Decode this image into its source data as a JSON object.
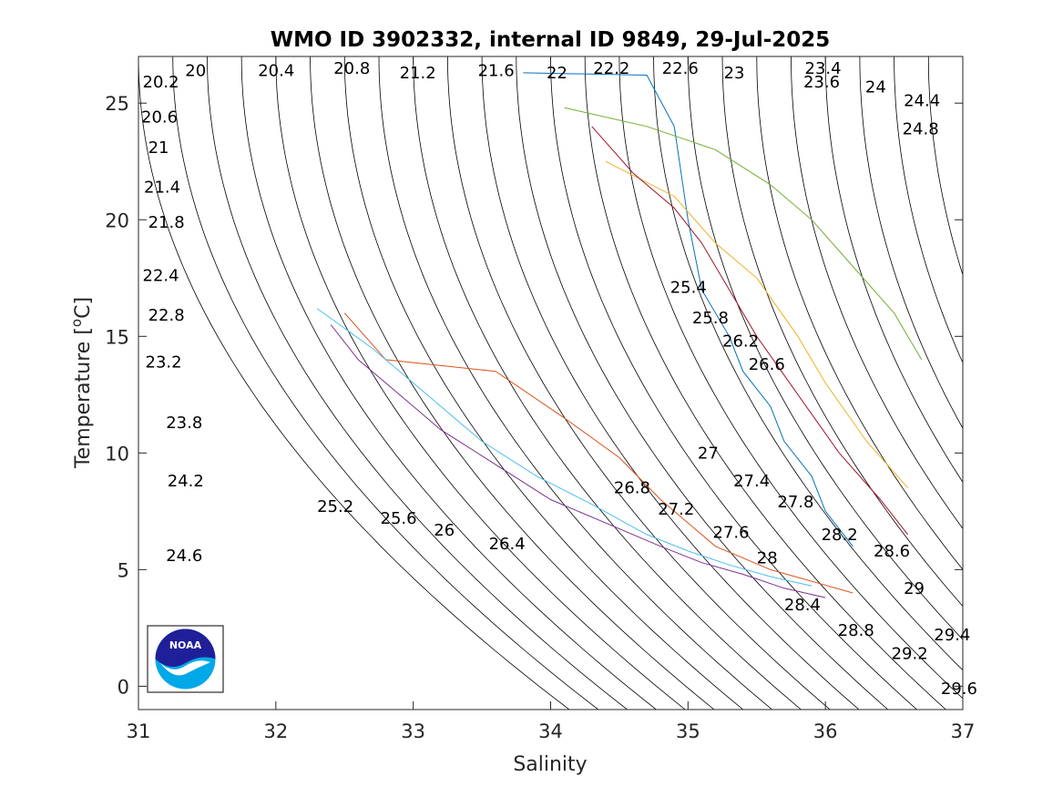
{
  "chart_data": {
    "type": "line",
    "title": "WMO ID 3902332, internal ID 9849, 29-Jul-2025",
    "xlabel": "Salinity",
    "ylabel": "Temperature [",
    "ylabel_unit": "o",
    "ylabel_tail": "C]",
    "xlim": [
      31,
      37
    ],
    "ylim": [
      -1,
      27
    ],
    "x_ticks": [
      "31",
      "32",
      "33",
      "34",
      "35",
      "36",
      "37"
    ],
    "y_ticks": [
      "0",
      "5",
      "10",
      "15",
      "20",
      "25"
    ],
    "grid": false,
    "density_contour_labels": [
      {
        "text": "20",
        "s": 31.34,
        "t": 26.4
      },
      {
        "text": "20.4",
        "s": 31.87,
        "t": 26.4
      },
      {
        "text": "20.8",
        "s": 32.42,
        "t": 26.5
      },
      {
        "text": "21.2",
        "s": 32.9,
        "t": 26.3
      },
      {
        "text": "21.6",
        "s": 33.47,
        "t": 26.4
      },
      {
        "text": "22",
        "s": 33.97,
        "t": 26.3
      },
      {
        "text": "22.2",
        "s": 34.31,
        "t": 26.5
      },
      {
        "text": "22.6",
        "s": 34.81,
        "t": 26.5
      },
      {
        "text": "23",
        "s": 35.26,
        "t": 26.3
      },
      {
        "text": "23.4",
        "s": 35.85,
        "t": 26.5
      },
      {
        "text": "23.6",
        "s": 35.84,
        "t": 25.9
      },
      {
        "text": "24",
        "s": 36.29,
        "t": 25.7
      },
      {
        "text": "24.4",
        "s": 36.57,
        "t": 25.1
      },
      {
        "text": "24.8",
        "s": 36.56,
        "t": 23.9
      },
      {
        "text": "20.2",
        "s": 31.03,
        "t": 25.9
      },
      {
        "text": "20.6",
        "s": 31.02,
        "t": 24.4
      },
      {
        "text": "21",
        "s": 31.07,
        "t": 23.1
      },
      {
        "text": "21.4",
        "s": 31.04,
        "t": 21.4
      },
      {
        "text": "21.8",
        "s": 31.07,
        "t": 19.9
      },
      {
        "text": "22.4",
        "s": 31.03,
        "t": 17.6
      },
      {
        "text": "22.8",
        "s": 31.07,
        "t": 15.9
      },
      {
        "text": "23.2",
        "s": 31.05,
        "t": 13.9
      },
      {
        "text": "23.8",
        "s": 31.2,
        "t": 11.3
      },
      {
        "text": "24.2",
        "s": 31.21,
        "t": 8.8
      },
      {
        "text": "24.6",
        "s": 31.2,
        "t": 5.6
      },
      {
        "text": "25.2",
        "s": 32.3,
        "t": 7.7
      },
      {
        "text": "25.6",
        "s": 32.76,
        "t": 7.2
      },
      {
        "text": "26",
        "s": 33.15,
        "t": 6.7
      },
      {
        "text": "26.4",
        "s": 33.55,
        "t": 6.1
      },
      {
        "text": "26.8",
        "s": 34.46,
        "t": 8.5
      },
      {
        "text": "27",
        "s": 35.07,
        "t": 10.0
      },
      {
        "text": "27.2",
        "s": 34.78,
        "t": 7.6
      },
      {
        "text": "27.4",
        "s": 35.33,
        "t": 8.8
      },
      {
        "text": "27.6",
        "s": 35.18,
        "t": 6.6
      },
      {
        "text": "27.8",
        "s": 35.65,
        "t": 7.9
      },
      {
        "text": "28",
        "s": 35.5,
        "t": 5.5
      },
      {
        "text": "28.2",
        "s": 35.97,
        "t": 6.5
      },
      {
        "text": "28.4",
        "s": 35.7,
        "t": 3.5
      },
      {
        "text": "28.6",
        "s": 36.35,
        "t": 5.8
      },
      {
        "text": "28.8",
        "s": 36.09,
        "t": 2.4
      },
      {
        "text": "29",
        "s": 36.57,
        "t": 4.2
      },
      {
        "text": "29.2",
        "s": 36.48,
        "t": 1.4
      },
      {
        "text": "29.4",
        "s": 36.79,
        "t": 2.2
      },
      {
        "text": "29.6",
        "s": 36.84,
        "t": -0.1
      },
      {
        "text": "25.4",
        "s": 34.87,
        "t": 17.1
      },
      {
        "text": "25.8",
        "s": 35.03,
        "t": 15.8
      },
      {
        "text": "26.2",
        "s": 35.25,
        "t": 14.8
      },
      {
        "text": "26.6",
        "s": 35.44,
        "t": 13.8
      }
    ],
    "series": [
      {
        "color": "#0072BD",
        "s": [
          33.8,
          34.7,
          34.9,
          35.0,
          35.1,
          35.3,
          35.4,
          35.6,
          35.7,
          35.9,
          36.0,
          36.2
        ],
        "t": [
          26.3,
          26.2,
          24.0,
          20.0,
          17.0,
          15.0,
          13.5,
          12.0,
          10.5,
          9.0,
          7.5,
          6.0
        ]
      },
      {
        "color": "#D95319",
        "s": [
          32.5,
          32.8,
          33.6,
          34.1,
          34.5,
          34.8,
          35.0,
          35.2,
          35.4,
          35.6,
          35.9,
          36.2
        ],
        "t": [
          16.0,
          14.0,
          13.5,
          11.5,
          9.8,
          8.0,
          7.0,
          6.0,
          5.5,
          5.0,
          4.5,
          4.0
        ]
      },
      {
        "color": "#EDB120",
        "s": [
          34.4,
          34.9,
          35.2,
          35.5,
          35.8,
          36.0,
          36.3,
          36.6
        ],
        "t": [
          22.5,
          21.0,
          19.0,
          17.5,
          15.0,
          13.0,
          10.5,
          8.5
        ]
      },
      {
        "color": "#7E2F8E",
        "s": [
          32.4,
          32.6,
          32.9,
          33.2,
          33.6,
          34.0,
          34.4,
          34.8,
          35.1,
          35.4,
          35.7,
          36.0
        ],
        "t": [
          15.5,
          14.0,
          12.5,
          11.0,
          9.5,
          8.0,
          7.0,
          6.0,
          5.3,
          4.8,
          4.2,
          3.8
        ]
      },
      {
        "color": "#77AC30",
        "s": [
          34.1,
          34.7,
          35.2,
          35.6,
          35.9,
          36.2,
          36.5,
          36.7
        ],
        "t": [
          24.8,
          24.0,
          23.0,
          21.5,
          20.0,
          18.0,
          16.0,
          14.0
        ]
      },
      {
        "color": "#4DBEEE",
        "s": [
          32.3,
          32.7,
          33.1,
          33.5,
          33.9,
          34.3,
          34.7,
          35.0,
          35.3,
          35.6,
          35.9
        ],
        "t": [
          16.2,
          14.5,
          12.5,
          10.5,
          9.0,
          7.8,
          6.5,
          5.8,
          5.2,
          4.7,
          4.3
        ]
      },
      {
        "color": "#A2142F",
        "s": [
          34.3,
          34.6,
          34.9,
          35.1,
          35.3,
          35.5,
          35.8,
          36.1,
          36.4,
          36.6
        ],
        "t": [
          24.0,
          22.0,
          20.5,
          19.0,
          17.0,
          15.0,
          12.5,
          10.0,
          8.0,
          6.5
        ]
      }
    ]
  },
  "logo": {
    "text": "NOAA",
    "colors": {
      "dark": "#1F1F99",
      "light": "#00A8E8",
      "white": "#ffffff"
    }
  },
  "colors": {
    "contour": "#000000",
    "axis": "#262626",
    "background": "#ffffff"
  }
}
